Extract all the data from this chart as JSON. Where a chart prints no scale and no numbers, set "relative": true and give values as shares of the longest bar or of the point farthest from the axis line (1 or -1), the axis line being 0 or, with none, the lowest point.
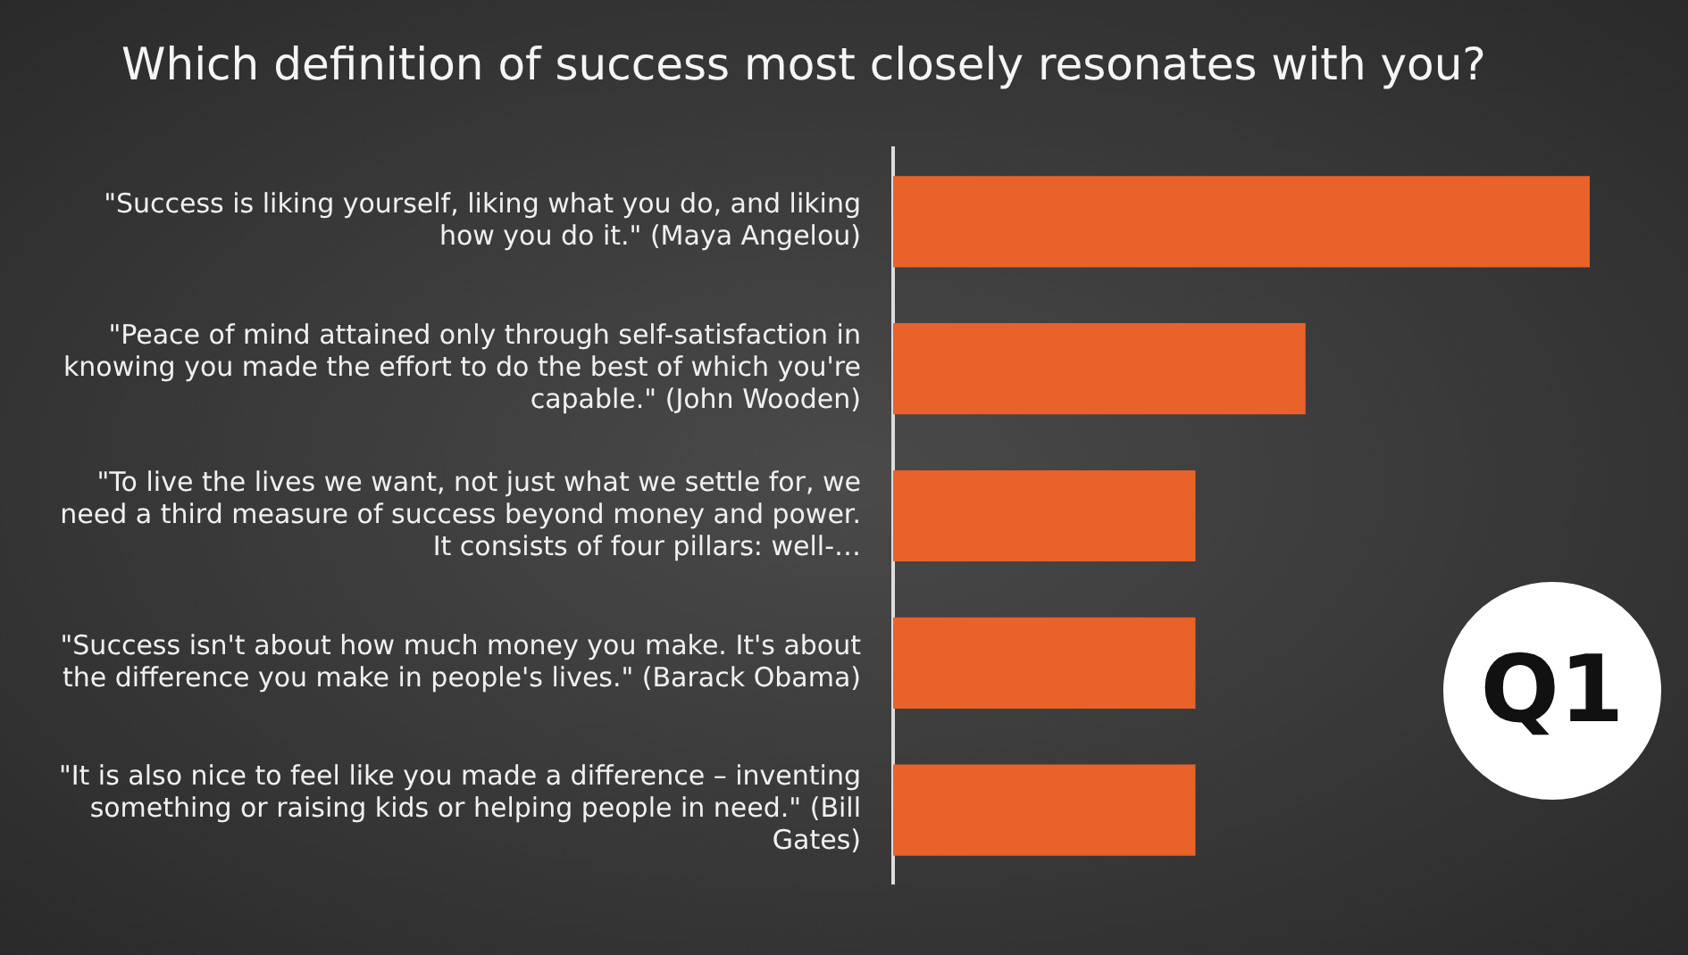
{
  "chart_data": {
    "type": "bar",
    "orientation": "horizontal",
    "relative": true,
    "title": "Which definition of success most closely resonates with you?",
    "categories": [
      "\"Success is liking yourself, liking what you do, and liking how you do it.\" (Maya Angelou)",
      "\"Peace of mind attained only through self-satisfaction in knowing you made the effort to do the best of which you're capable.\" (John Wooden)",
      "\"To live the lives we want, not just what we settle for, we need a third measure of success beyond money and power. It consists of four pillars: well-…",
      "\"Success isn't about how much money you make. It's about the difference you make in people's lives.\" (Barack Obama)",
      "\"It is also nice to feel like you made a difference – inventing something or raising kids or helping people in need.\" (Bill Gates)"
    ],
    "values": [
      1,
      0.592,
      0.434,
      0.434,
      0.434
    ],
    "color": "#e8622a",
    "legend": false,
    "annotations": [
      "Q1"
    ]
  }
}
